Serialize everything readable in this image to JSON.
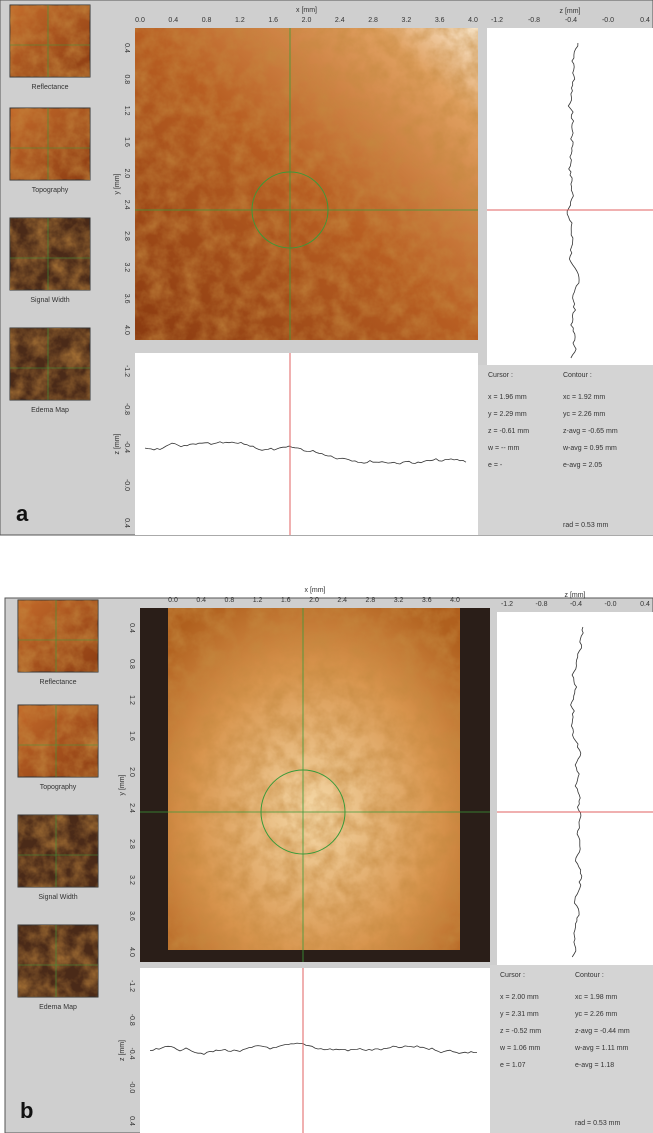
{
  "panels": [
    {
      "label": "a",
      "thumbnails": [
        "Reflectance",
        "Topography",
        "Signal Width",
        "Edema Map"
      ],
      "x_axis_label": "x [mm]",
      "y_axis_label": "y [mm]",
      "z_axis_label": "z [mm]",
      "x_ticks": [
        "0.0",
        "0.4",
        "0.8",
        "1.2",
        "1.6",
        "2.0",
        "2.4",
        "2.8",
        "3.2",
        "3.6",
        "4.0"
      ],
      "y_ticks": [
        "0.4",
        "0.8",
        "1.2",
        "1.6",
        "2.0",
        "2.4",
        "2.8",
        "3.2",
        "3.6",
        "4.0"
      ],
      "profile_z_ticks": [
        "-1.2",
        "-0.8",
        "-0.4",
        "-0.0",
        "0.4"
      ],
      "cursor": {
        "title": "Cursor :",
        "lines": [
          "x = 1.96 mm",
          "y = 2.29 mm",
          "z = -0.61 mm",
          "w = -- mm",
          "e = -"
        ]
      },
      "contour": {
        "title": "Contour :",
        "lines": [
          "xc = 1.92 mm",
          "yc = 2.26 mm",
          "z-avg = -0.65 mm",
          "w-avg = 0.95 mm",
          "e-avg = 2.05"
        ],
        "radius": "rad = 0.53 mm"
      }
    },
    {
      "label": "b",
      "thumbnails": [
        "Reflectance",
        "Topography",
        "Signal Width",
        "Edema Map"
      ],
      "x_axis_label": "x [mm]",
      "y_axis_label": "y [mm]",
      "z_axis_label": "z [mm]",
      "x_ticks": [
        "0.0",
        "0.4",
        "0.8",
        "1.2",
        "1.6",
        "2.0",
        "2.4",
        "2.8",
        "3.2",
        "3.6",
        "4.0"
      ],
      "y_ticks": [
        "0.4",
        "0.8",
        "1.2",
        "1.6",
        "2.0",
        "2.4",
        "2.8",
        "3.2",
        "3.6",
        "4.0"
      ],
      "profile_z_ticks": [
        "-1.2",
        "-0.8",
        "-0.4",
        "-0.0",
        "0.4"
      ],
      "cursor": {
        "title": "Cursor :",
        "lines": [
          "x = 2.00 mm",
          "y = 2.31 mm",
          "z = -0.52 mm",
          "w = 1.06 mm",
          "e = 1.07"
        ]
      },
      "contour": {
        "title": "Contour :",
        "lines": [
          "xc = 1.98 mm",
          "yc = 2.26 mm",
          "z-avg = -0.44 mm",
          "w-avg = 1.11 mm",
          "e-avg = 1.18"
        ],
        "radius": "rad = 0.53 mm"
      }
    }
  ]
}
